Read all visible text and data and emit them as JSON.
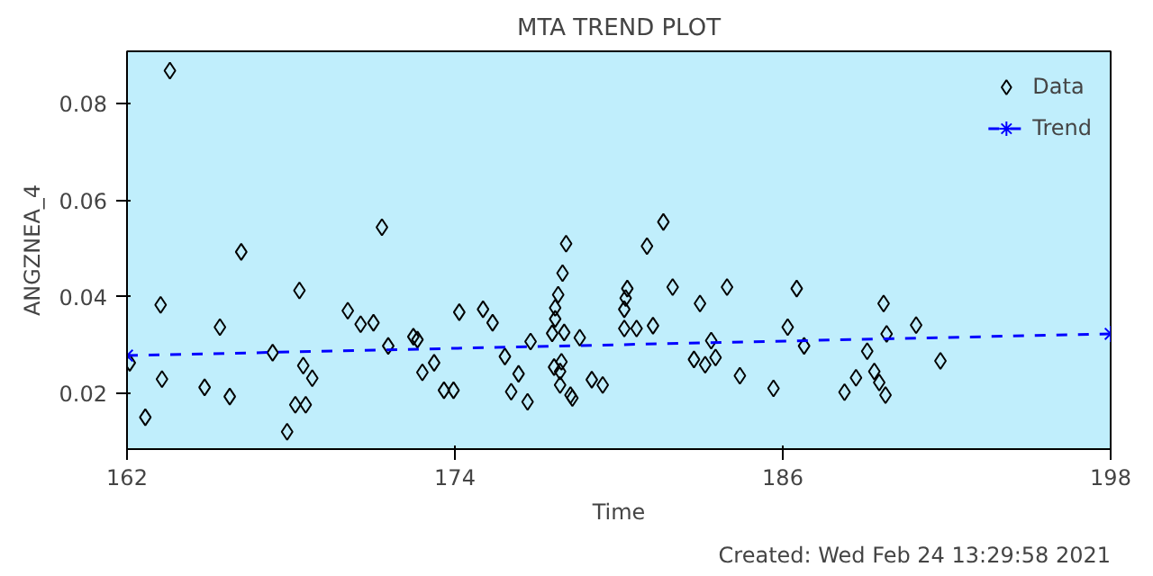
{
  "chart_data": {
    "type": "scatter",
    "title": "MTA TREND PLOT",
    "xlabel": "Time",
    "ylabel": "ANGZNEA_4",
    "annotations": [
      "Created: Wed Feb 24 13:29:58 2021"
    ],
    "xlim": [
      162,
      198
    ],
    "xticks": [
      162,
      174,
      186,
      198
    ],
    "ylim": [
      0.0084,
      0.0909
    ],
    "yticks": [
      0.02,
      0.04,
      0.06,
      0.08
    ],
    "grid": false,
    "legend": "top right",
    "series": [
      {
        "name": "Data",
        "marker": "diamond",
        "color": "#000000",
        "x": [
          163.57,
          162.1,
          162.67,
          163.23,
          163.28,
          164.84,
          165.4,
          165.76,
          166.18,
          167.33,
          167.86,
          168.16,
          168.54,
          168.31,
          168.45,
          168.78,
          170.08,
          170.55,
          171.02,
          171.33,
          171.56,
          172.48,
          172.63,
          172.81,
          173.24,
          173.6,
          173.95,
          174.16,
          175.03,
          175.38,
          175.83,
          176.33,
          176.06,
          176.66,
          176.77,
          177.56,
          177.67,
          177.67,
          177.78,
          177.94,
          178.07,
          178.0,
          177.63,
          177.9,
          177.85,
          177.85,
          178.23,
          178.3,
          178.57,
          179.01,
          179.41,
          180.2,
          180.2,
          180.25,
          180.31,
          180.65,
          181.03,
          181.25,
          181.63,
          181.97,
          182.75,
          182.97,
          183.16,
          183.38,
          183.54,
          183.96,
          184.43,
          185.66,
          186.18,
          186.51,
          186.78,
          188.26,
          188.68,
          189.09,
          189.35,
          189.53,
          189.69,
          189.8,
          189.76,
          190.88,
          191.77
        ],
        "values": [
          0.0869,
          0.0263,
          0.015,
          0.0383,
          0.0229,
          0.0212,
          0.0337,
          0.0193,
          0.0493,
          0.0284,
          0.012,
          0.0176,
          0.0176,
          0.0413,
          0.0257,
          0.0231,
          0.0371,
          0.0343,
          0.0346,
          0.0544,
          0.0298,
          0.0317,
          0.0311,
          0.0243,
          0.0263,
          0.0206,
          0.0206,
          0.0368,
          0.0374,
          0.0346,
          0.0276,
          0.024,
          0.0203,
          0.0182,
          0.0307,
          0.0324,
          0.0354,
          0.0377,
          0.0404,
          0.0449,
          0.051,
          0.0326,
          0.0254,
          0.0265,
          0.0245,
          0.0217,
          0.0196,
          0.019,
          0.0315,
          0.0228,
          0.0217,
          0.0334,
          0.0374,
          0.0397,
          0.0417,
          0.0334,
          0.0505,
          0.034,
          0.0555,
          0.042,
          0.027,
          0.0386,
          0.0259,
          0.0309,
          0.0274,
          0.042,
          0.0236,
          0.021,
          0.0337,
          0.0417,
          0.0298,
          0.0202,
          0.0232,
          0.0287,
          0.0245,
          0.0222,
          0.0386,
          0.0323,
          0.0196,
          0.0341,
          0.0267
        ]
      },
      {
        "name": "Trend",
        "type": "line",
        "marker": "cross",
        "line_style": "dashed",
        "color": "#0000ff",
        "x": [
          162,
          198
        ],
        "values": [
          0.0278,
          0.0323
        ]
      }
    ]
  }
}
